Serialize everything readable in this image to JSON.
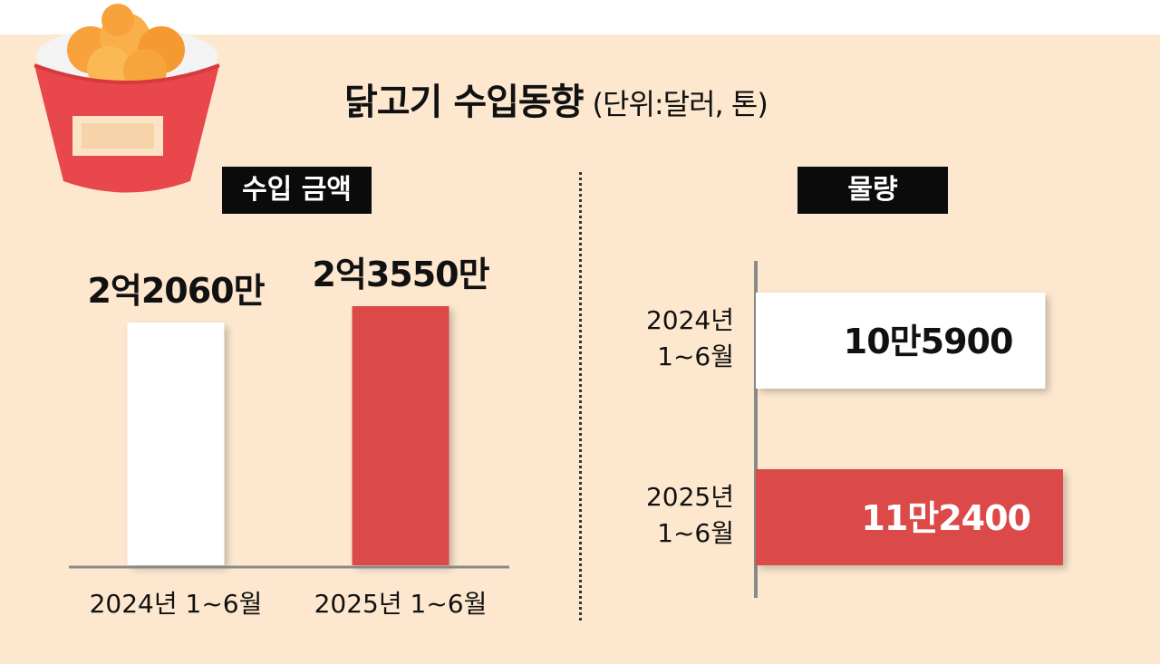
{
  "title": "닭고기 수입동향",
  "unit": "(단위:달러, 톤)",
  "colors": {
    "background": "#fde8cf",
    "bar_2024": "#ffffff",
    "bar_2025": "#dc4a4a",
    "label_box": "#0b0b0b"
  },
  "icon": "chicken-bucket-icon",
  "chart_data": [
    {
      "type": "bar",
      "title": "수입 금액",
      "orientation": "vertical",
      "categories": [
        "2024년 1~6월",
        "2025년 1~6월"
      ],
      "values": [
        220600000,
        235500000
      ],
      "value_labels": [
        "2억2060만",
        "2억3550만"
      ],
      "grid": false
    },
    {
      "type": "bar",
      "title": "물량",
      "orientation": "horizontal",
      "categories": [
        "2024년 1~6월",
        "2025년 1~6월"
      ],
      "category_lines": [
        [
          "2024년",
          "1~6월"
        ],
        [
          "2025년",
          "1~6월"
        ]
      ],
      "values": [
        105900,
        112400
      ],
      "value_labels": [
        "10만5900",
        "11만2400"
      ],
      "grid": false
    }
  ]
}
